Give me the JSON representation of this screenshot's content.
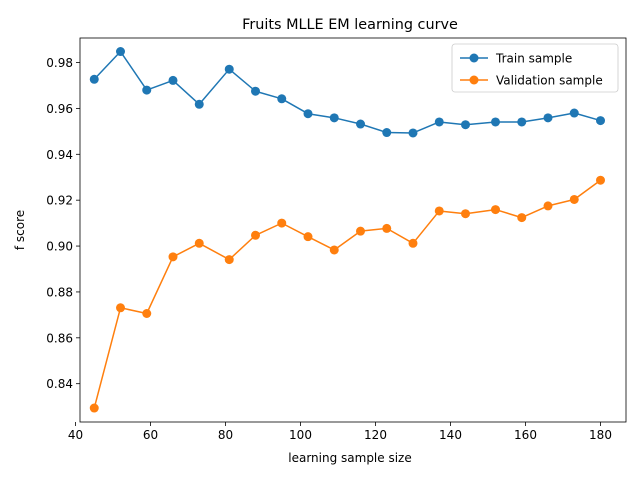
{
  "chart_data": {
    "type": "line",
    "title": "Fruits MLLE EM learning curve",
    "xlabel": "learning sample size",
    "ylabel": "f score",
    "xlim": [
      41.2,
      186.8
    ],
    "ylim": [
      0.8233,
      0.9907
    ],
    "xticks": [
      40,
      60,
      80,
      100,
      120,
      140,
      160,
      180
    ],
    "yticks": [
      0.84,
      0.86,
      0.88,
      0.9,
      0.92,
      0.94,
      0.96,
      0.98
    ],
    "xtick_labels": [
      "40",
      "60",
      "80",
      "100",
      "120",
      "140",
      "160",
      "180"
    ],
    "ytick_labels": [
      "0.84",
      "0.86",
      "0.88",
      "0.90",
      "0.92",
      "0.94",
      "0.96",
      "0.98"
    ],
    "grid": false,
    "legend_position": "top-right",
    "x": [
      45,
      52,
      59,
      66,
      73,
      81,
      88,
      95,
      102,
      109,
      116,
      123,
      130,
      137,
      144,
      152,
      159,
      166,
      173,
      180
    ],
    "series": [
      {
        "name": "Train sample",
        "color": "#1f77b4",
        "values": [
          0.9727,
          0.9848,
          0.968,
          0.9722,
          0.9618,
          0.9771,
          0.9675,
          0.9642,
          0.9577,
          0.9559,
          0.9532,
          0.9495,
          0.9493,
          0.9541,
          0.9529,
          0.9541,
          0.9541,
          0.9559,
          0.958,
          0.9547
        ]
      },
      {
        "name": "Validation sample",
        "color": "#ff7f0e",
        "values": [
          0.8294,
          0.8731,
          0.8706,
          0.8953,
          0.9012,
          0.8941,
          0.9047,
          0.91,
          0.9041,
          0.8983,
          0.9065,
          0.9077,
          0.9012,
          0.9153,
          0.9141,
          0.9159,
          0.9124,
          0.9175,
          0.9203,
          0.9287
        ]
      }
    ]
  }
}
